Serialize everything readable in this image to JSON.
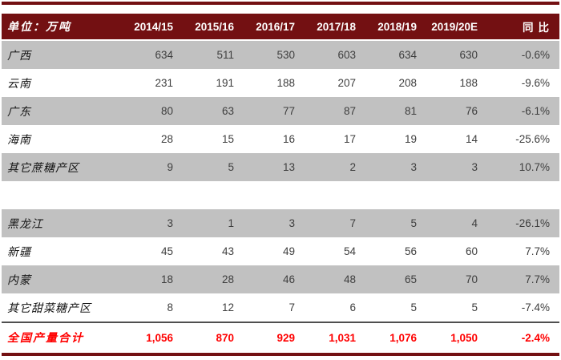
{
  "colors": {
    "rule_and_header_maroon": "#731012",
    "row_stripe_gray": "#C1C1C1",
    "total_row_red": "#FF0000",
    "body_text": "#3E3E3E",
    "header_text": "#FFFFFF"
  },
  "table": {
    "unit_label": "单位：万吨",
    "headers": [
      "2014/15",
      "2015/16",
      "2016/17",
      "2017/18",
      "2018/19",
      "2019/20E",
      "同比"
    ],
    "rows": [
      {
        "label": "广西",
        "cells": [
          "634",
          "511",
          "530",
          "603",
          "634",
          "630",
          "-0.6%"
        ]
      },
      {
        "label": "云南",
        "cells": [
          "231",
          "191",
          "188",
          "207",
          "208",
          "188",
          "-9.6%"
        ]
      },
      {
        "label": "广东",
        "cells": [
          "80",
          "63",
          "77",
          "87",
          "81",
          "76",
          "-6.1%"
        ]
      },
      {
        "label": "海南",
        "cells": [
          "28",
          "15",
          "16",
          "17",
          "19",
          "14",
          "-25.6%"
        ]
      },
      {
        "label": "其它蔗糖产区",
        "cells": [
          "9",
          "5",
          "13",
          "2",
          "3",
          "3",
          "10.7%"
        ]
      },
      {
        "label": "黑龙江",
        "cells": [
          "3",
          "1",
          "3",
          "7",
          "5",
          "4",
          "-26.1%"
        ]
      },
      {
        "label": "新疆",
        "cells": [
          "45",
          "43",
          "49",
          "54",
          "56",
          "60",
          "7.7%"
        ]
      },
      {
        "label": "内蒙",
        "cells": [
          "18",
          "28",
          "46",
          "48",
          "65",
          "70",
          "7.7%"
        ]
      },
      {
        "label": "其它甜菜糖产区",
        "cells": [
          "8",
          "12",
          "7",
          "6",
          "5",
          "5",
          "-7.4%"
        ]
      }
    ],
    "total": {
      "label": "全国产量合计",
      "cells": [
        "1,056",
        "870",
        "929",
        "1,031",
        "1,076",
        "1,050",
        "-2.4%"
      ]
    }
  },
  "chart_data": {
    "type": "table",
    "unit_label": "单位：万吨",
    "columns": [
      "2014/15",
      "2015/16",
      "2016/17",
      "2017/18",
      "2018/19",
      "2019/20E",
      "同比"
    ],
    "rows": [
      {
        "label": "广西",
        "values": [
          634,
          511,
          530,
          603,
          634,
          630
        ],
        "yoy_pct": -0.6
      },
      {
        "label": "云南",
        "values": [
          231,
          191,
          188,
          207,
          208,
          188
        ],
        "yoy_pct": -9.6
      },
      {
        "label": "广东",
        "values": [
          80,
          63,
          77,
          87,
          81,
          76
        ],
        "yoy_pct": -6.1
      },
      {
        "label": "海南",
        "values": [
          28,
          15,
          16,
          17,
          19,
          14
        ],
        "yoy_pct": -25.6
      },
      {
        "label": "其它蔗糖产区",
        "values": [
          9,
          5,
          13,
          2,
          3,
          3
        ],
        "yoy_pct": 10.7
      },
      {
        "label": "黑龙江",
        "values": [
          3,
          1,
          3,
          7,
          5,
          4
        ],
        "yoy_pct": -26.1
      },
      {
        "label": "新疆",
        "values": [
          45,
          43,
          49,
          54,
          56,
          60
        ],
        "yoy_pct": 7.7
      },
      {
        "label": "内蒙",
        "values": [
          18,
          28,
          46,
          48,
          65,
          70
        ],
        "yoy_pct": 7.7
      },
      {
        "label": "其它甜菜糖产区",
        "values": [
          8,
          12,
          7,
          6,
          5,
          5
        ],
        "yoy_pct": -7.4
      },
      {
        "label": "全国产量合计",
        "values": [
          1056,
          870,
          929,
          1031,
          1076,
          1050
        ],
        "yoy_pct": -2.4,
        "is_total": true
      }
    ],
    "layout_hints": {
      "blank_spacer_after_row_index": 4,
      "stripe_rows_gray": [
        0,
        2,
        4,
        5,
        7
      ],
      "total_row_color": "#FF0000",
      "header_bg": "#731012"
    }
  }
}
